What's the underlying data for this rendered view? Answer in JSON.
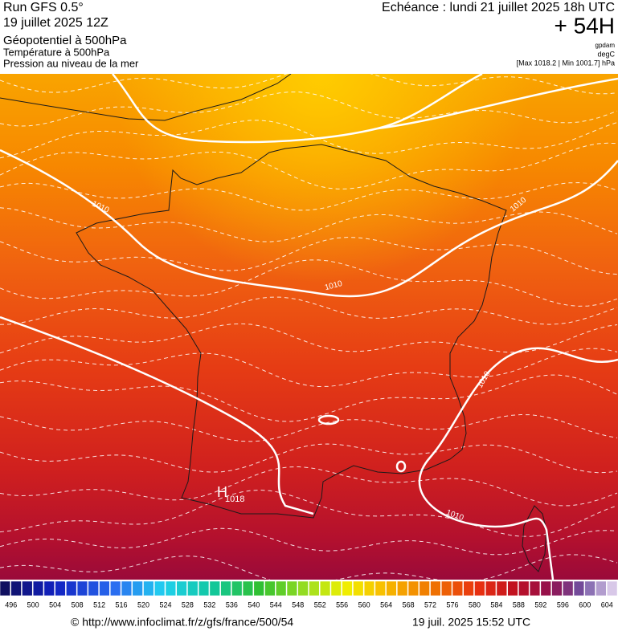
{
  "header": {
    "run": "Run GFS 0.5°",
    "date": "19 juillet 2025 12Z",
    "fields": [
      "Géopotentiel à 500hPa",
      "Température à 500hPa",
      "Pression au niveau de la mer"
    ]
  },
  "forecast": {
    "echeance": "Echéance : lundi 21 juillet 2025 18h UTC",
    "step": "+ 54H",
    "units": [
      "gpdam",
      "degC"
    ],
    "range": "[Max 1018.2 | Min 1001.7] hPa"
  },
  "map": {
    "isobar_labels": [
      "1010",
      "1010",
      "1010",
      "1010",
      "1010"
    ],
    "high": {
      "symbol": "H",
      "value": "1018"
    }
  },
  "colorbar": {
    "labels": [
      496,
      500,
      504,
      508,
      512,
      516,
      520,
      524,
      528,
      532,
      536,
      540,
      544,
      548,
      552,
      556,
      560,
      564,
      568,
      572,
      576,
      580,
      584,
      588,
      592,
      596,
      600,
      604
    ]
  },
  "footer": {
    "source": "© http://www.infoclimat.fr/z/gfs/france/500/54",
    "timestamp": "19 juil. 2025 15:52 UTC"
  }
}
